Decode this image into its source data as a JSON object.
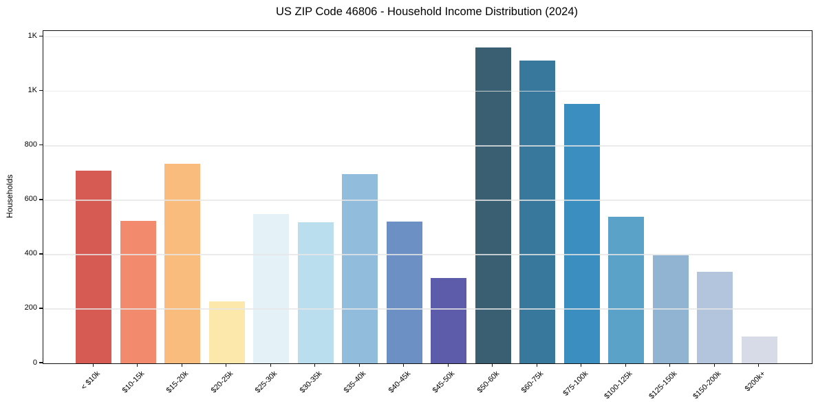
{
  "chart_data": {
    "type": "bar",
    "title": "US ZIP Code 46806 - Household Income Distribution (2024)",
    "xlabel": "",
    "ylabel": "Households",
    "categories": [
      "< $10k",
      "$10-15k",
      "$15-20k",
      "$20-25k",
      "$25-30k",
      "$30-35k",
      "$35-40k",
      "$40-45k",
      "$45-50k",
      "$50-60k",
      "$60-75k",
      "$75-100k",
      "$100-125k",
      "$125-150k",
      "$150-200k",
      "$200k+"
    ],
    "values": [
      708,
      525,
      735,
      228,
      550,
      518,
      697,
      520,
      315,
      1162,
      1112,
      955,
      539,
      397,
      336,
      98
    ],
    "bar_colors": [
      "#d65c53",
      "#f28a6e",
      "#f9bc7d",
      "#fce8aa",
      "#e4f1f7",
      "#badeed",
      "#92bcdb",
      "#6c90c4",
      "#5c5caa",
      "#3a5f73",
      "#38789d",
      "#3a8ec0",
      "#5aa2c8",
      "#91b4d2",
      "#b3c4dd",
      "#d7dae7"
    ],
    "ylim": [
      0,
      1222
    ],
    "yticks": [
      0,
      200,
      400,
      600,
      800,
      1000,
      1200
    ],
    "ytick_labels": [
      "0",
      "200",
      "400",
      "600",
      "800",
      "1K",
      "1K"
    ],
    "grid": "horizontal",
    "gridline_color": "#e6e6e6",
    "spine_color": "#111111",
    "background_color": "#ffffff",
    "legend": "none"
  }
}
